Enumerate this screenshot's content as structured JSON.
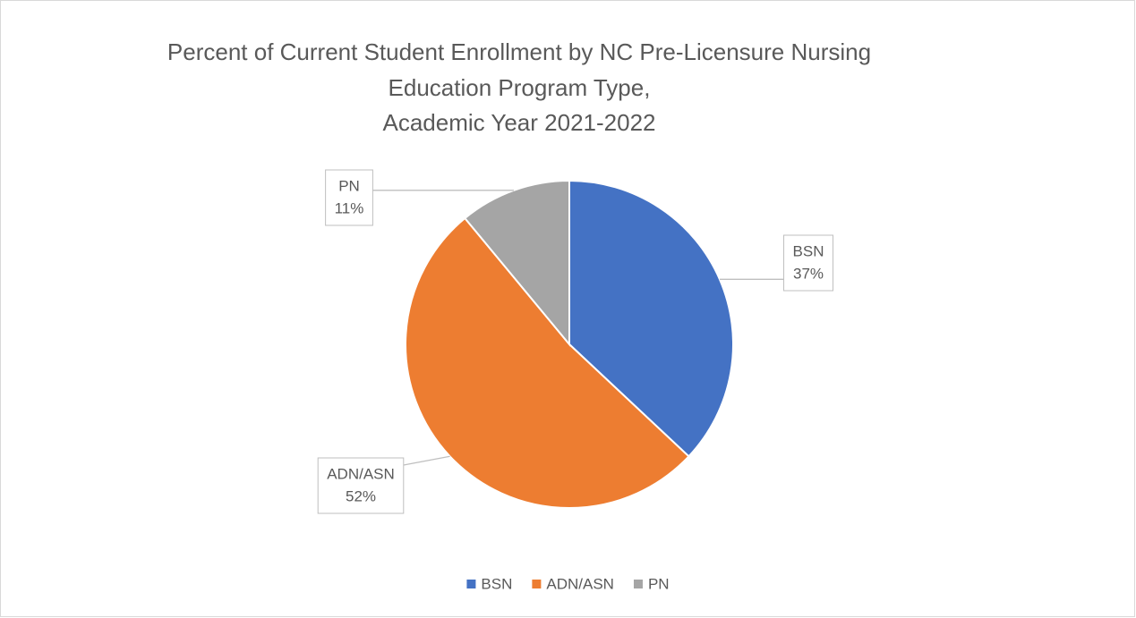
{
  "chart_data": {
    "type": "pie",
    "title": [
      "Percent of Current Student Enrollment by NC Pre-Licensure Nursing",
      "Education Program Type,",
      "Academic Year 2021-2022"
    ],
    "categories": [
      "BSN",
      "ADN/ASN",
      "PN"
    ],
    "values": [
      37,
      52,
      11
    ],
    "value_labels": [
      "37%",
      "52%",
      "11%"
    ],
    "colors": [
      "#4472c4",
      "#ed7d31",
      "#a5a5a5"
    ],
    "legend": "bottom"
  }
}
